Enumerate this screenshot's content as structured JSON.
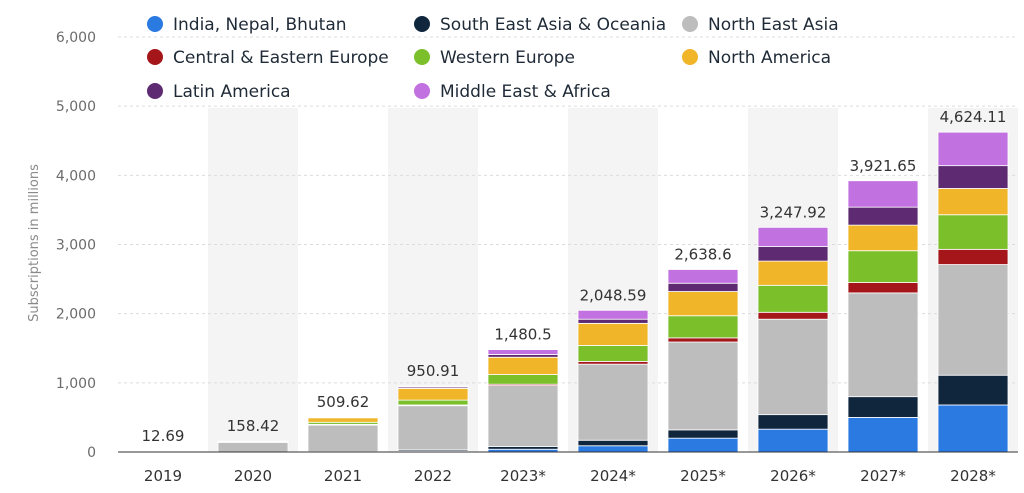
{
  "chart_data": {
    "type": "bar",
    "stacked": true,
    "ylabel": "Subscriptions in millions",
    "ylim": [
      0,
      6000
    ],
    "yticks": [
      0,
      1000,
      2000,
      3000,
      4000,
      5000,
      6000
    ],
    "ytick_labels": [
      "0",
      "1,000",
      "2,000",
      "3,000",
      "4,000",
      "5,000",
      "6,000"
    ],
    "categories": [
      "2019",
      "2020",
      "2021",
      "2022",
      "2023*",
      "2024*",
      "2025*",
      "2026*",
      "2027*",
      "2028*"
    ],
    "totals": [
      12.69,
      158.42,
      509.62,
      950.91,
      1480.5,
      2048.59,
      2638.6,
      3247.92,
      3921.65,
      4624.11
    ],
    "total_labels": [
      "12.69",
      "158.42",
      "509.62",
      "950.91",
      "1,480.5",
      "2,048.59",
      "2,638.6",
      "3,247.92",
      "3,921.65",
      "4,624.11"
    ],
    "legend_placement": "top",
    "series": [
      {
        "name": "India, Nepal, Bhutan",
        "color": "#2a7ae2",
        "values": [
          0,
          0,
          0,
          10,
          40,
          90,
          200,
          330,
          500,
          680
        ]
      },
      {
        "name": "South East Asia & Oceania",
        "color": "#10263d",
        "values": [
          0,
          0,
          5,
          20,
          40,
          80,
          120,
          210,
          300,
          430
        ]
      },
      {
        "name": "North East Asia",
        "color": "#bdbdbd",
        "values": [
          12.69,
          140,
          390,
          640,
          880,
          1100,
          1270,
          1380,
          1500,
          1600
        ]
      },
      {
        "name": "Central & Eastern Europe",
        "color": "#a4161a",
        "values": [
          0,
          0,
          5,
          10,
          20,
          40,
          60,
          100,
          150,
          220
        ]
      },
      {
        "name": "Western Europe",
        "color": "#7bbf2a",
        "values": [
          0,
          10,
          30,
          70,
          140,
          230,
          320,
          390,
          460,
          500
        ]
      },
      {
        "name": "North America",
        "color": "#f0b528",
        "values": [
          0,
          8.42,
          70,
          170,
          250,
          320,
          350,
          350,
          370,
          380
        ]
      },
      {
        "name": "Latin America",
        "color": "#5e2a72",
        "values": [
          0,
          0,
          4.62,
          20,
          40,
          60,
          120,
          210,
          260,
          330
        ]
      },
      {
        "name": "Middle East & Africa",
        "color": "#c271e0",
        "values": [
          0,
          0,
          5,
          10.91,
          70.5,
          128.59,
          198.6,
          277.92,
          381.65,
          484.11
        ]
      }
    ]
  }
}
